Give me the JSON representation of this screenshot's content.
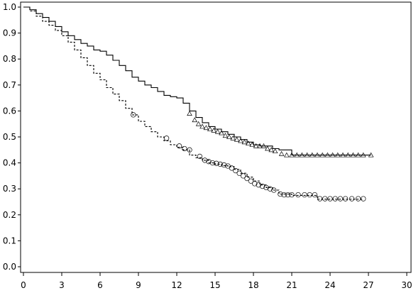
{
  "chart_data": {
    "type": "line",
    "title": "",
    "xlabel": "",
    "ylabel": "",
    "xlim": [
      0,
      30
    ],
    "ylim": [
      0,
      1.0
    ],
    "xticks": [
      "0",
      "3",
      "6",
      "9",
      "12",
      "15",
      "18",
      "21",
      "24",
      "27",
      "30"
    ],
    "yticks": [
      "0.0",
      "0.1",
      "0.2",
      "0.3",
      "0.4",
      "0.5",
      "0.6",
      "0.7",
      "0.8",
      "0.9",
      "1.0"
    ],
    "grid": false,
    "legend": "none",
    "series": [
      {
        "line_style": "solid",
        "marker": "triangle",
        "color": "#000000",
        "x": [
          0,
          0.5,
          1,
          1.5,
          2,
          2.5,
          3,
          3.5,
          4,
          4.5,
          5,
          5.5,
          6,
          6.5,
          7,
          7.5,
          8,
          8.5,
          9,
          9.5,
          10,
          10.5,
          11,
          11.5,
          12,
          12.5,
          13,
          13.5,
          14,
          14.5,
          15,
          15.5,
          16,
          16.5,
          17,
          17.5,
          18,
          18.5,
          19,
          19.5,
          20,
          21,
          22,
          23,
          24,
          25,
          26,
          27.2
        ],
        "y": [
          1.0,
          0.99,
          0.975,
          0.96,
          0.945,
          0.925,
          0.905,
          0.89,
          0.875,
          0.86,
          0.85,
          0.835,
          0.83,
          0.815,
          0.795,
          0.775,
          0.755,
          0.73,
          0.715,
          0.7,
          0.69,
          0.675,
          0.66,
          0.655,
          0.65,
          0.63,
          0.6,
          0.575,
          0.555,
          0.54,
          0.53,
          0.52,
          0.51,
          0.5,
          0.49,
          0.48,
          0.47,
          0.465,
          0.465,
          0.455,
          0.45,
          0.43,
          0.43,
          0.43,
          0.43,
          0.43,
          0.43,
          0.43
        ],
        "censored_x": [
          13,
          13.4,
          13.7,
          14,
          14.3,
          14.6,
          14.9,
          15.2,
          15.5,
          15.8,
          16.1,
          16.4,
          16.7,
          17,
          17.3,
          17.6,
          17.9,
          18.2,
          18.5,
          18.8,
          19.1,
          19.4,
          19.7,
          20.2,
          20.6,
          21,
          21.4,
          21.8,
          22.2,
          22.6,
          23,
          23.4,
          23.8,
          24.2,
          24.6,
          25,
          25.4,
          25.8,
          26.2,
          26.6,
          27.2
        ],
        "censored_y": [
          0.59,
          0.565,
          0.55,
          0.54,
          0.535,
          0.53,
          0.525,
          0.52,
          0.515,
          0.505,
          0.5,
          0.495,
          0.49,
          0.485,
          0.48,
          0.475,
          0.47,
          0.465,
          0.465,
          0.465,
          0.455,
          0.45,
          0.445,
          0.435,
          0.43,
          0.43,
          0.43,
          0.43,
          0.43,
          0.43,
          0.43,
          0.43,
          0.43,
          0.43,
          0.43,
          0.43,
          0.43,
          0.43,
          0.43,
          0.43,
          0.43
        ]
      },
      {
        "line_style": "dashed",
        "marker": "circle",
        "color": "#000000",
        "x": [
          0,
          0.5,
          1,
          1.5,
          2,
          2.5,
          3,
          3.5,
          4,
          4.5,
          5,
          5.5,
          6,
          6.5,
          7,
          7.5,
          8,
          8.5,
          9,
          9.5,
          10,
          10.5,
          11,
          11.5,
          12,
          12.5,
          13,
          13.5,
          14,
          14.5,
          15,
          15.5,
          16,
          16.5,
          17,
          17.5,
          18,
          18.5,
          19,
          19.5,
          20,
          21,
          22,
          23,
          24,
          25,
          26,
          26.6
        ],
        "y": [
          1.0,
          0.985,
          0.965,
          0.945,
          0.93,
          0.91,
          0.89,
          0.865,
          0.835,
          0.805,
          0.775,
          0.745,
          0.72,
          0.69,
          0.665,
          0.64,
          0.61,
          0.585,
          0.56,
          0.54,
          0.52,
          0.5,
          0.485,
          0.47,
          0.46,
          0.45,
          0.43,
          0.42,
          0.41,
          0.4,
          0.395,
          0.39,
          0.385,
          0.375,
          0.36,
          0.345,
          0.33,
          0.315,
          0.305,
          0.295,
          0.28,
          0.275,
          0.275,
          0.26,
          0.26,
          0.26,
          0.26,
          0.26
        ],
        "censored_x": [
          8.6,
          11.2,
          12.2,
          12.6,
          13,
          13.8,
          14.2,
          14.5,
          14.8,
          15.1,
          15.4,
          15.7,
          16,
          16.3,
          16.6,
          16.9,
          17.2,
          17.5,
          17.8,
          18.1,
          18.4,
          18.7,
          19,
          19.3,
          19.6,
          20.1,
          20.4,
          20.7,
          21,
          21.5,
          22,
          22.4,
          22.8,
          23.2,
          23.6,
          24,
          24.4,
          24.8,
          25.2,
          25.7,
          26.2,
          26.6
        ],
        "censored_y": [
          0.585,
          0.495,
          0.465,
          0.455,
          0.45,
          0.425,
          0.41,
          0.405,
          0.4,
          0.398,
          0.395,
          0.392,
          0.388,
          0.38,
          0.37,
          0.36,
          0.35,
          0.34,
          0.33,
          0.32,
          0.315,
          0.31,
          0.305,
          0.3,
          0.295,
          0.28,
          0.277,
          0.277,
          0.277,
          0.277,
          0.277,
          0.277,
          0.277,
          0.262,
          0.262,
          0.262,
          0.262,
          0.262,
          0.262,
          0.262,
          0.262,
          0.262
        ]
      }
    ]
  }
}
